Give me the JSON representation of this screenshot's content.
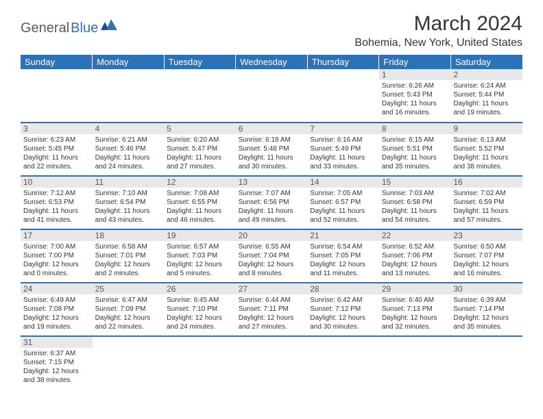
{
  "logo": {
    "general": "General",
    "blue": "Blue"
  },
  "title": "March 2024",
  "location": "Bohemia, New York, United States",
  "dayHeaders": [
    "Sunday",
    "Monday",
    "Tuesday",
    "Wednesday",
    "Thursday",
    "Friday",
    "Saturday"
  ],
  "colors": {
    "headerBg": "#2b72b9",
    "headerText": "#ffffff",
    "dayNumBg": "#e8e8e8",
    "dayNumText": "#555555",
    "bodyText": "#333333",
    "rowBorder": "#2b72b9"
  },
  "fonts": {
    "title_pt": 30,
    "location_pt": 16,
    "dayHeader_pt": 13,
    "dayNum_pt": 12,
    "dayBody_pt": 10
  },
  "weeks": [
    [
      null,
      null,
      null,
      null,
      null,
      {
        "n": "1",
        "sunrise": "Sunrise: 6:26 AM",
        "sunset": "Sunset: 5:43 PM",
        "daylight": "Daylight: 11 hours and 16 minutes."
      },
      {
        "n": "2",
        "sunrise": "Sunrise: 6:24 AM",
        "sunset": "Sunset: 5:44 PM",
        "daylight": "Daylight: 11 hours and 19 minutes."
      }
    ],
    [
      {
        "n": "3",
        "sunrise": "Sunrise: 6:23 AM",
        "sunset": "Sunset: 5:45 PM",
        "daylight": "Daylight: 11 hours and 22 minutes."
      },
      {
        "n": "4",
        "sunrise": "Sunrise: 6:21 AM",
        "sunset": "Sunset: 5:46 PM",
        "daylight": "Daylight: 11 hours and 24 minutes."
      },
      {
        "n": "5",
        "sunrise": "Sunrise: 6:20 AM",
        "sunset": "Sunset: 5:47 PM",
        "daylight": "Daylight: 11 hours and 27 minutes."
      },
      {
        "n": "6",
        "sunrise": "Sunrise: 6:18 AM",
        "sunset": "Sunset: 5:48 PM",
        "daylight": "Daylight: 11 hours and 30 minutes."
      },
      {
        "n": "7",
        "sunrise": "Sunrise: 6:16 AM",
        "sunset": "Sunset: 5:49 PM",
        "daylight": "Daylight: 11 hours and 33 minutes."
      },
      {
        "n": "8",
        "sunrise": "Sunrise: 6:15 AM",
        "sunset": "Sunset: 5:51 PM",
        "daylight": "Daylight: 11 hours and 35 minutes."
      },
      {
        "n": "9",
        "sunrise": "Sunrise: 6:13 AM",
        "sunset": "Sunset: 5:52 PM",
        "daylight": "Daylight: 11 hours and 38 minutes."
      }
    ],
    [
      {
        "n": "10",
        "sunrise": "Sunrise: 7:12 AM",
        "sunset": "Sunset: 6:53 PM",
        "daylight": "Daylight: 11 hours and 41 minutes."
      },
      {
        "n": "11",
        "sunrise": "Sunrise: 7:10 AM",
        "sunset": "Sunset: 6:54 PM",
        "daylight": "Daylight: 11 hours and 43 minutes."
      },
      {
        "n": "12",
        "sunrise": "Sunrise: 7:08 AM",
        "sunset": "Sunset: 6:55 PM",
        "daylight": "Daylight: 11 hours and 46 minutes."
      },
      {
        "n": "13",
        "sunrise": "Sunrise: 7:07 AM",
        "sunset": "Sunset: 6:56 PM",
        "daylight": "Daylight: 11 hours and 49 minutes."
      },
      {
        "n": "14",
        "sunrise": "Sunrise: 7:05 AM",
        "sunset": "Sunset: 6:57 PM",
        "daylight": "Daylight: 11 hours and 52 minutes."
      },
      {
        "n": "15",
        "sunrise": "Sunrise: 7:03 AM",
        "sunset": "Sunset: 6:58 PM",
        "daylight": "Daylight: 11 hours and 54 minutes."
      },
      {
        "n": "16",
        "sunrise": "Sunrise: 7:02 AM",
        "sunset": "Sunset: 6:59 PM",
        "daylight": "Daylight: 11 hours and 57 minutes."
      }
    ],
    [
      {
        "n": "17",
        "sunrise": "Sunrise: 7:00 AM",
        "sunset": "Sunset: 7:00 PM",
        "daylight": "Daylight: 12 hours and 0 minutes."
      },
      {
        "n": "18",
        "sunrise": "Sunrise: 6:58 AM",
        "sunset": "Sunset: 7:01 PM",
        "daylight": "Daylight: 12 hours and 2 minutes."
      },
      {
        "n": "19",
        "sunrise": "Sunrise: 6:57 AM",
        "sunset": "Sunset: 7:03 PM",
        "daylight": "Daylight: 12 hours and 5 minutes."
      },
      {
        "n": "20",
        "sunrise": "Sunrise: 6:55 AM",
        "sunset": "Sunset: 7:04 PM",
        "daylight": "Daylight: 12 hours and 8 minutes."
      },
      {
        "n": "21",
        "sunrise": "Sunrise: 6:54 AM",
        "sunset": "Sunset: 7:05 PM",
        "daylight": "Daylight: 12 hours and 11 minutes."
      },
      {
        "n": "22",
        "sunrise": "Sunrise: 6:52 AM",
        "sunset": "Sunset: 7:06 PM",
        "daylight": "Daylight: 12 hours and 13 minutes."
      },
      {
        "n": "23",
        "sunrise": "Sunrise: 6:50 AM",
        "sunset": "Sunset: 7:07 PM",
        "daylight": "Daylight: 12 hours and 16 minutes."
      }
    ],
    [
      {
        "n": "24",
        "sunrise": "Sunrise: 6:49 AM",
        "sunset": "Sunset: 7:08 PM",
        "daylight": "Daylight: 12 hours and 19 minutes."
      },
      {
        "n": "25",
        "sunrise": "Sunrise: 6:47 AM",
        "sunset": "Sunset: 7:09 PM",
        "daylight": "Daylight: 12 hours and 22 minutes."
      },
      {
        "n": "26",
        "sunrise": "Sunrise: 6:45 AM",
        "sunset": "Sunset: 7:10 PM",
        "daylight": "Daylight: 12 hours and 24 minutes."
      },
      {
        "n": "27",
        "sunrise": "Sunrise: 6:44 AM",
        "sunset": "Sunset: 7:11 PM",
        "daylight": "Daylight: 12 hours and 27 minutes."
      },
      {
        "n": "28",
        "sunrise": "Sunrise: 6:42 AM",
        "sunset": "Sunset: 7:12 PM",
        "daylight": "Daylight: 12 hours and 30 minutes."
      },
      {
        "n": "29",
        "sunrise": "Sunrise: 6:40 AM",
        "sunset": "Sunset: 7:13 PM",
        "daylight": "Daylight: 12 hours and 32 minutes."
      },
      {
        "n": "30",
        "sunrise": "Sunrise: 6:39 AM",
        "sunset": "Sunset: 7:14 PM",
        "daylight": "Daylight: 12 hours and 35 minutes."
      }
    ],
    [
      {
        "n": "31",
        "sunrise": "Sunrise: 6:37 AM",
        "sunset": "Sunset: 7:15 PM",
        "daylight": "Daylight: 12 hours and 38 minutes."
      },
      null,
      null,
      null,
      null,
      null,
      null
    ]
  ]
}
